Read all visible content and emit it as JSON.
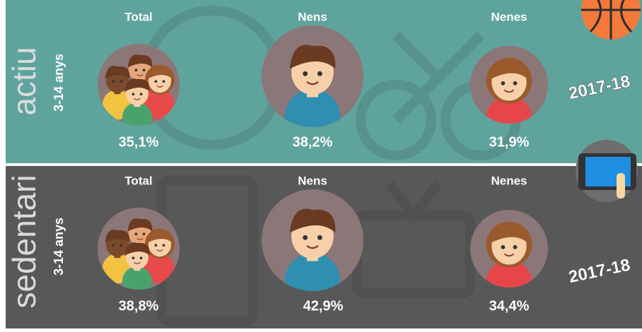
{
  "panels": [
    {
      "label": "actiu",
      "age": "3-14 anys",
      "year": "2017-18",
      "items": [
        {
          "label": "Total",
          "value": "35,1%"
        },
        {
          "label": "Nens",
          "value": "38,2%"
        },
        {
          "label": "Nenes",
          "value": "31,9%"
        }
      ]
    },
    {
      "label": "sedentari",
      "age": "3-14 anys",
      "year": "2017-18",
      "items": [
        {
          "label": "Total",
          "value": "38,8%"
        },
        {
          "label": "Nens",
          "value": "42,9%"
        },
        {
          "label": "Nenes",
          "value": "34,4%"
        }
      ]
    }
  ]
}
